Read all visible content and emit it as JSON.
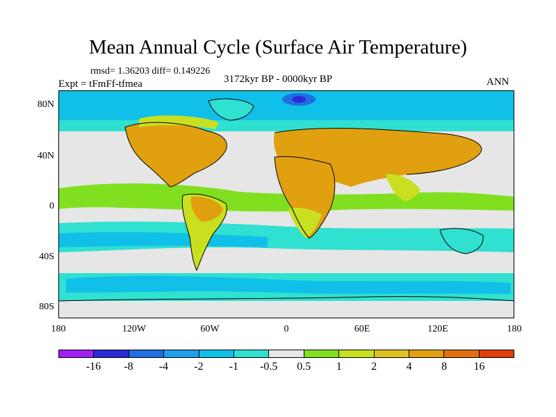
{
  "title": "Mean Annual Cycle (Surface Air Temperature)",
  "stats": "rmsd= 1.36203 diff= 0.149226",
  "experiment": "Expt = tFmFf-tfmea",
  "period": "3172kyr BP - 0000kyr BP",
  "season": "ANN",
  "y_axis_labels": [
    "80N",
    "40N",
    "0",
    "40S",
    "80S"
  ],
  "x_axis_labels": [
    "180",
    "120W",
    "60W",
    "0",
    "60E",
    "120E",
    "180"
  ],
  "colorbar": {
    "colors": [
      "#a020f0",
      "#2b2bd6",
      "#1f6fe0",
      "#1f9fe8",
      "#10c0e8",
      "#30e0d0",
      "#e6e6e6",
      "#80e020",
      "#c8e020",
      "#e0c020",
      "#e0a010",
      "#e07010",
      "#e04010"
    ],
    "labels": [
      "-16",
      "-8",
      "-4",
      "-2",
      "-1",
      "-0.5",
      "0.5",
      "1",
      "2",
      "4",
      "8",
      "16"
    ]
  },
  "map_colors": {
    "ocean_neutral": "#e6e6e6",
    "cool_light": "#30e0d0",
    "cool": "#10c0e8",
    "cold": "#1f9fe8",
    "colder": "#1f6fe0",
    "coldest": "#2b2bd6",
    "warm_light": "#80e020",
    "warm": "#c8e020",
    "hot": "#e0a010",
    "coast": "#000000"
  }
}
